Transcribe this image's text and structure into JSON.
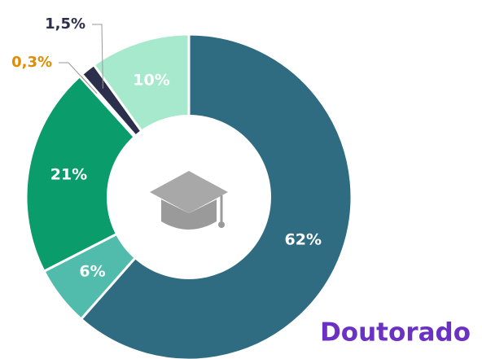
{
  "chart_data": {
    "type": "donut",
    "title": "Doutorado",
    "values": [
      62,
      6,
      21,
      0.3,
      1.5,
      10
    ],
    "value_labels": [
      "62%",
      "6%",
      "21%",
      "0,3%",
      "1,5%",
      "10%"
    ],
    "colors": [
      "#2f6c81",
      "#52bcac",
      "#0b9c6b",
      "#e08c00",
      "#2b2f4b",
      "#a7e9cd"
    ]
  }
}
